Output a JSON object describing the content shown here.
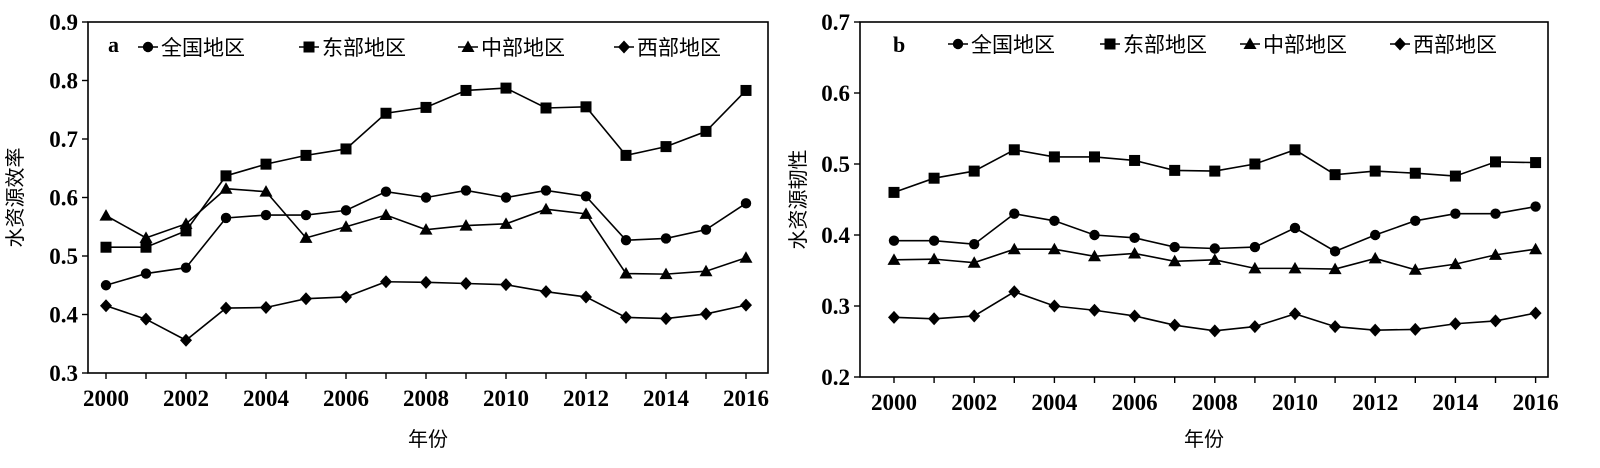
{
  "chart_data": [
    {
      "type": "line",
      "panel_label": "a",
      "title": "",
      "xlabel": "年份",
      "ylabel": "水资源效率",
      "ylim": [
        0.3,
        0.9
      ],
      "yticks": [
        "0.3",
        "0.4",
        "0.5",
        "0.6",
        "0.7",
        "0.8",
        "0.9"
      ],
      "xticks": [
        "2000",
        "2002",
        "2004",
        "2006",
        "2008",
        "2010",
        "2012",
        "2014",
        "2016"
      ],
      "legend_position": "top",
      "x": [
        2000,
        2001,
        2002,
        2003,
        2004,
        2005,
        2006,
        2007,
        2008,
        2009,
        2010,
        2011,
        2012,
        2013,
        2014,
        2015,
        2016
      ],
      "series": [
        {
          "name": "全国地区",
          "marker": "circle",
          "values": [
            0.45,
            0.47,
            0.48,
            0.565,
            0.57,
            0.57,
            0.578,
            0.61,
            0.6,
            0.612,
            0.6,
            0.612,
            0.602,
            0.527,
            0.53,
            0.545,
            0.59
          ]
        },
        {
          "name": "东部地区",
          "marker": "square",
          "values": [
            0.515,
            0.515,
            0.543,
            0.637,
            0.657,
            0.672,
            0.683,
            0.744,
            0.754,
            0.783,
            0.787,
            0.753,
            0.755,
            0.672,
            0.687,
            0.713,
            0.783
          ]
        },
        {
          "name": "中部地区",
          "marker": "triangle",
          "values": [
            0.569,
            0.531,
            0.555,
            0.615,
            0.61,
            0.531,
            0.55,
            0.57,
            0.545,
            0.552,
            0.555,
            0.58,
            0.572,
            0.47,
            0.469,
            0.474,
            0.497
          ]
        },
        {
          "name": "西部地区",
          "marker": "diamond",
          "values": [
            0.415,
            0.392,
            0.356,
            0.411,
            0.412,
            0.427,
            0.43,
            0.456,
            0.455,
            0.453,
            0.451,
            0.439,
            0.43,
            0.395,
            0.393,
            0.401,
            0.416
          ]
        }
      ]
    },
    {
      "type": "line",
      "panel_label": "b",
      "title": "",
      "xlabel": "年份",
      "ylabel": "水资源韧性",
      "ylim": [
        0.2,
        0.7
      ],
      "yticks": [
        "0.2",
        "0.3",
        "0.4",
        "0.5",
        "0.6",
        "0.7"
      ],
      "xticks": [
        "2000",
        "2002",
        "2004",
        "2006",
        "2008",
        "2010",
        "2012",
        "2014",
        "2016"
      ],
      "legend_position": "top",
      "x": [
        2000,
        2001,
        2002,
        2003,
        2004,
        2005,
        2006,
        2007,
        2008,
        2009,
        2010,
        2011,
        2012,
        2013,
        2014,
        2015,
        2016
      ],
      "series": [
        {
          "name": "全国地区",
          "marker": "circle",
          "values": [
            0.392,
            0.392,
            0.387,
            0.43,
            0.42,
            0.4,
            0.396,
            0.383,
            0.381,
            0.383,
            0.41,
            0.377,
            0.4,
            0.42,
            0.43,
            0.43,
            0.44
          ]
        },
        {
          "name": "东部地区",
          "marker": "square",
          "values": [
            0.46,
            0.48,
            0.49,
            0.52,
            0.51,
            0.51,
            0.505,
            0.491,
            0.49,
            0.5,
            0.52,
            0.485,
            0.49,
            0.487,
            0.483,
            0.503,
            0.502
          ]
        },
        {
          "name": "中部地区",
          "marker": "triangle",
          "values": [
            0.365,
            0.366,
            0.361,
            0.38,
            0.38,
            0.37,
            0.374,
            0.363,
            0.365,
            0.353,
            0.353,
            0.352,
            0.367,
            0.351,
            0.359,
            0.372,
            0.38
          ]
        },
        {
          "name": "西部地区",
          "marker": "diamond",
          "values": [
            0.284,
            0.282,
            0.286,
            0.32,
            0.3,
            0.294,
            0.286,
            0.273,
            0.265,
            0.271,
            0.289,
            0.271,
            0.266,
            0.267,
            0.275,
            0.279,
            0.29
          ]
        }
      ]
    }
  ]
}
